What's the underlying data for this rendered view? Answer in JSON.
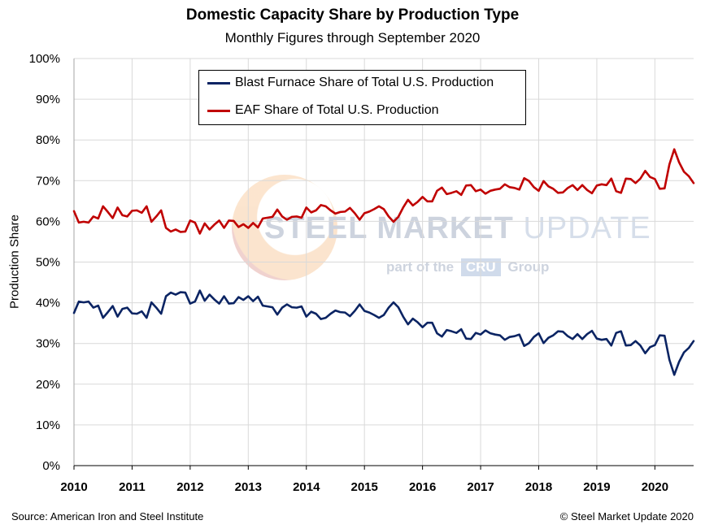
{
  "header": {
    "title": "Domestic Capacity Share by Production Type",
    "subtitle": "Monthly Figures through September 2020"
  },
  "footer": {
    "source": "Source: American Iron and Steel Institute",
    "copyright": "© Steel Market Update 2020"
  },
  "watermark": {
    "name_bold": "STEEL MARKET",
    "name_light": "UPDATE",
    "tag_prefix": "part of the",
    "tag_badge": "CRU",
    "tag_suffix": "Group"
  },
  "chart_data": {
    "type": "line",
    "title": "Domestic Capacity Share by Production Type",
    "subtitle": "Monthly Figures through September 2020",
    "xlabel": "",
    "ylabel": "Production Share",
    "x_ticks": [
      "2010",
      "2011",
      "2012",
      "2013",
      "2014",
      "2015",
      "2016",
      "2017",
      "2018",
      "2019",
      "2020"
    ],
    "y_ticks": [
      "0%",
      "10%",
      "20%",
      "30%",
      "40%",
      "50%",
      "60%",
      "70%",
      "80%",
      "90%",
      "100%"
    ],
    "ylim": [
      0,
      100
    ],
    "x_start": "2010-01",
    "x_end": "2020-09",
    "grid": true,
    "legend_position": "top-center",
    "series": [
      {
        "name": "Blast Furnace Share of Total U.S. Production",
        "color": "#0b2463",
        "values": [
          37.5,
          40.3,
          40.1,
          40.3,
          38.8,
          39.3,
          36.3,
          37.7,
          39.2,
          36.6,
          38.5,
          38.8,
          37.4,
          37.3,
          37.9,
          36.3,
          40.1,
          38.8,
          37.3,
          41.6,
          42.5,
          42.0,
          42.6,
          42.5,
          39.8,
          40.3,
          43.0,
          40.5,
          42.0,
          40.8,
          39.8,
          41.6,
          39.8,
          39.9,
          41.4,
          40.7,
          41.6,
          40.4,
          41.5,
          39.3,
          39.1,
          38.9,
          37.1,
          38.8,
          39.6,
          38.9,
          38.8,
          39.1,
          36.6,
          37.8,
          37.3,
          36.0,
          36.3,
          37.3,
          38.1,
          37.7,
          37.6,
          36.7,
          38.0,
          39.6,
          38.0,
          37.6,
          37.0,
          36.3,
          37.0,
          38.8,
          40.1,
          38.9,
          36.6,
          34.7,
          36.1,
          35.2,
          34.0,
          35.1,
          35.1,
          32.5,
          31.7,
          33.3,
          33.0,
          32.6,
          33.5,
          31.2,
          31.1,
          32.6,
          32.2,
          33.2,
          32.5,
          32.2,
          32.0,
          30.9,
          31.6,
          31.8,
          32.2,
          29.4,
          30.1,
          31.6,
          32.5,
          30.1,
          31.4,
          32.0,
          33.0,
          32.9,
          31.8,
          31.1,
          32.3,
          31.1,
          32.3,
          33.1,
          31.2,
          30.9,
          31.1,
          29.5,
          32.6,
          33.0,
          29.5,
          29.6,
          30.6,
          29.5,
          27.6,
          29.1,
          29.6,
          32.0,
          31.9,
          26.0,
          22.3,
          25.5,
          27.8,
          28.9,
          30.6
        ]
      },
      {
        "name": "EAF Share of Total U.S. Production",
        "color": "#c00000",
        "values": [
          62.5,
          59.7,
          59.9,
          59.7,
          61.2,
          60.7,
          63.7,
          62.3,
          60.8,
          63.4,
          61.5,
          61.2,
          62.6,
          62.7,
          62.1,
          63.7,
          59.9,
          61.2,
          62.7,
          58.4,
          57.5,
          58.0,
          57.4,
          57.5,
          60.2,
          59.7,
          57.0,
          59.5,
          58.0,
          59.2,
          60.2,
          58.4,
          60.2,
          60.1,
          58.6,
          59.3,
          58.4,
          59.6,
          58.5,
          60.7,
          60.9,
          61.1,
          62.9,
          61.2,
          60.4,
          61.1,
          61.2,
          60.9,
          63.4,
          62.2,
          62.7,
          64.0,
          63.7,
          62.7,
          61.9,
          62.3,
          62.4,
          63.3,
          62.0,
          60.4,
          62.0,
          62.4,
          63.0,
          63.7,
          63.0,
          61.2,
          59.9,
          61.1,
          63.4,
          65.3,
          63.9,
          64.8,
          66.0,
          64.9,
          64.9,
          67.5,
          68.3,
          66.7,
          67.0,
          67.4,
          66.5,
          68.8,
          68.9,
          67.4,
          67.8,
          66.8,
          67.5,
          67.8,
          68.0,
          69.1,
          68.4,
          68.2,
          67.8,
          70.6,
          69.9,
          68.4,
          67.5,
          69.9,
          68.6,
          68.0,
          67.0,
          67.1,
          68.2,
          68.9,
          67.7,
          68.9,
          67.7,
          66.9,
          68.8,
          69.1,
          68.9,
          70.5,
          67.4,
          67.0,
          70.5,
          70.4,
          69.4,
          70.5,
          72.4,
          70.9,
          70.4,
          68.0,
          68.1,
          74.0,
          77.7,
          74.5,
          72.2,
          71.1,
          69.4
        ]
      }
    ]
  }
}
